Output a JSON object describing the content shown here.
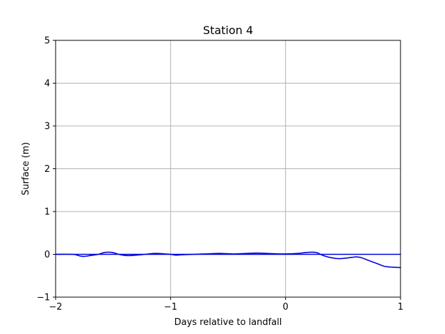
{
  "chart_data": {
    "type": "line",
    "title": "Station 4",
    "xlabel": "Days relative to landfall",
    "ylabel": "Surface (m)",
    "xlim": [
      -2,
      1
    ],
    "ylim": [
      -1,
      5
    ],
    "xticks": [
      -2,
      -1,
      0,
      1
    ],
    "xtick_labels": [
      "−2",
      "−1",
      "0",
      "1"
    ],
    "yticks": [
      -1,
      0,
      1,
      2,
      3,
      4,
      5
    ],
    "ytick_labels": [
      "−1",
      "0",
      "1",
      "2",
      "3",
      "4",
      "5"
    ],
    "grid": true,
    "colors": {
      "series": "#0000dd",
      "grid": "#b0b0b0",
      "axis": "#000000"
    },
    "series": [
      {
        "x": [
          -2,
          1
        ],
        "y": [
          0,
          0
        ]
      },
      {
        "x": [
          -2.0,
          -1.85,
          -1.8,
          -1.76,
          -1.7,
          -1.63,
          -1.58,
          -1.54,
          -1.5,
          -1.45,
          -1.38,
          -1.3,
          -1.22,
          -1.15,
          -1.1,
          -1.05,
          -1.0,
          -0.95,
          -0.9,
          -0.8,
          -0.7,
          -0.6,
          -0.55,
          -0.45,
          -0.35,
          -0.25,
          -0.15,
          -0.05,
          0.0,
          0.1,
          0.17,
          0.22,
          0.27,
          0.33,
          0.4,
          0.46,
          0.52,
          0.58,
          0.62,
          0.66,
          0.72,
          0.8,
          0.86,
          0.93,
          1.0
        ],
        "y": [
          0.0,
          0.0,
          -0.03,
          -0.05,
          -0.03,
          0.0,
          0.04,
          0.05,
          0.04,
          0.0,
          -0.03,
          -0.02,
          0.0,
          0.02,
          0.02,
          0.01,
          0.0,
          -0.02,
          -0.01,
          0.0,
          0.01,
          0.02,
          0.02,
          0.01,
          0.02,
          0.03,
          0.02,
          0.01,
          0.01,
          0.02,
          0.04,
          0.05,
          0.04,
          -0.03,
          -0.08,
          -0.1,
          -0.09,
          -0.07,
          -0.06,
          -0.08,
          -0.14,
          -0.22,
          -0.28,
          -0.3,
          -0.31
        ]
      }
    ]
  }
}
